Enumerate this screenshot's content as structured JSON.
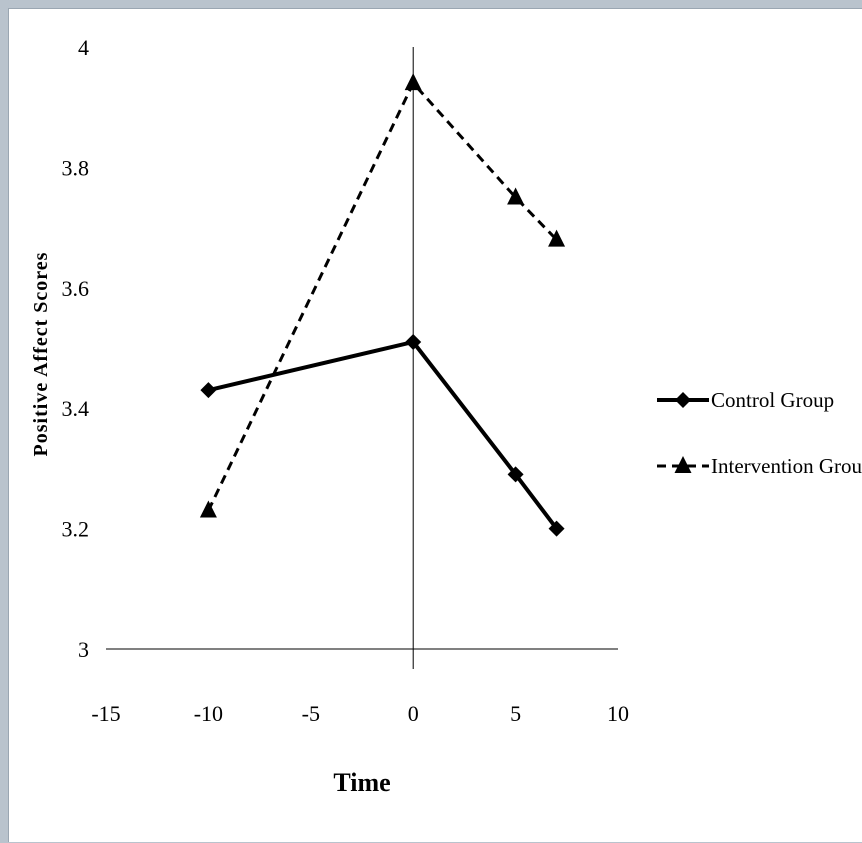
{
  "chart_data": {
    "type": "line",
    "title": "",
    "xlabel": "Time",
    "ylabel": "Positive Affect Scores",
    "xlim": [
      -15,
      10
    ],
    "ylim": [
      3,
      4
    ],
    "x_ticks": [
      -15,
      -10,
      -5,
      0,
      5,
      10
    ],
    "y_ticks": [
      3,
      3.2,
      3.4,
      3.6,
      3.8,
      4
    ],
    "x_tick_labels": [
      "-15",
      "-10",
      "-5",
      "0",
      "5",
      "10"
    ],
    "y_tick_labels": [
      "3",
      "3.2",
      "3.4",
      "3.6",
      "3.8",
      "4"
    ],
    "grid": false,
    "legend_position": "right",
    "series": [
      {
        "name": "Control Group",
        "x": [
          -10,
          0,
          5,
          7
        ],
        "values": [
          3.43,
          3.51,
          3.29,
          3.2
        ],
        "line_style": "solid",
        "marker": "diamond",
        "color": "#000000"
      },
      {
        "name": "Intervention Group",
        "x": [
          -10,
          0,
          5,
          7
        ],
        "values": [
          3.23,
          3.94,
          3.75,
          3.68
        ],
        "line_style": "dashed",
        "marker": "triangle",
        "color": "#000000"
      }
    ]
  }
}
